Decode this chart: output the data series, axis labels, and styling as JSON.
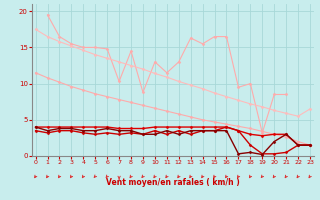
{
  "xlabel": "Vent moyen/en rafales ( km/h )",
  "background_color": "#c8eded",
  "grid_color": "#a8d8d8",
  "x_ticks": [
    0,
    1,
    2,
    3,
    4,
    5,
    6,
    7,
    8,
    9,
    10,
    11,
    12,
    13,
    14,
    15,
    16,
    17,
    18,
    19,
    20,
    21,
    22,
    23
  ],
  "y_ticks": [
    0,
    5,
    10,
    15,
    20
  ],
  "xlim": [
    0,
    23
  ],
  "ylim": [
    0,
    21
  ],
  "series": [
    {
      "x": [
        0,
        1,
        2,
        3,
        4,
        5,
        6,
        7,
        8,
        9,
        10,
        11,
        12,
        13,
        14,
        15,
        16,
        17,
        18,
        19,
        20,
        21,
        22,
        23
      ],
      "y": [
        11.5,
        10.8,
        10.2,
        9.6,
        9.1,
        8.6,
        8.2,
        7.8,
        7.4,
        7.0,
        6.6,
        6.2,
        5.8,
        5.4,
        5.0,
        4.7,
        4.4,
        4.1,
        3.8,
        3.4,
        3.0,
        2.6,
        2.0,
        1.5
      ],
      "color": "#ffaaaa",
      "marker": "D",
      "markersize": 1.5,
      "linewidth": 0.8
    },
    {
      "x": [
        1,
        2,
        3,
        4,
        5,
        6,
        7,
        8,
        9,
        10,
        11,
        12,
        13,
        14,
        15,
        16,
        17,
        18,
        19,
        20,
        21
      ],
      "y": [
        19.5,
        16.5,
        15.5,
        15.0,
        15.0,
        14.8,
        10.3,
        14.5,
        8.8,
        13.0,
        11.5,
        13.0,
        16.3,
        15.5,
        16.5,
        16.5,
        9.5,
        10.0,
        3.2,
        8.5,
        8.5
      ],
      "color": "#ffaaaa",
      "marker": "D",
      "markersize": 1.5,
      "linewidth": 0.8
    },
    {
      "x": [
        0,
        1,
        2,
        3,
        4,
        5,
        6,
        7,
        8,
        9,
        10,
        11,
        12,
        13,
        14,
        15,
        16,
        17,
        18,
        19,
        20,
        21,
        22,
        23
      ],
      "y": [
        17.5,
        16.5,
        15.8,
        15.2,
        14.6,
        14.0,
        13.5,
        13.0,
        12.5,
        12.0,
        11.4,
        10.9,
        10.3,
        9.8,
        9.3,
        8.7,
        8.2,
        7.7,
        7.2,
        6.8,
        6.3,
        5.9,
        5.5,
        6.5
      ],
      "color": "#ffbbbb",
      "marker": "D",
      "markersize": 1.5,
      "linewidth": 0.8
    },
    {
      "x": [
        0,
        1,
        2,
        3,
        4,
        5,
        6,
        7,
        8,
        9,
        10,
        11,
        12,
        13,
        14,
        15,
        16,
        17,
        18,
        19,
        20,
        21,
        22,
        23
      ],
      "y": [
        4.0,
        4.0,
        4.0,
        4.0,
        4.0,
        4.0,
        4.0,
        3.8,
        3.8,
        3.8,
        4.0,
        4.0,
        4.0,
        4.0,
        4.0,
        4.0,
        4.0,
        3.5,
        3.0,
        2.8,
        3.0,
        3.0,
        1.5,
        1.5
      ],
      "color": "#dd0000",
      "marker": "D",
      "markersize": 1.5,
      "linewidth": 1.0
    },
    {
      "x": [
        0,
        1,
        2,
        3,
        4,
        5,
        6,
        7,
        8,
        9,
        10,
        11,
        12,
        13,
        14,
        15,
        16,
        17,
        18,
        19,
        20,
        21,
        22,
        23
      ],
      "y": [
        3.5,
        3.2,
        3.5,
        3.5,
        3.2,
        3.0,
        3.2,
        3.0,
        3.2,
        3.0,
        3.5,
        3.0,
        3.5,
        3.0,
        3.5,
        3.5,
        4.0,
        3.5,
        1.5,
        0.3,
        0.3,
        0.5,
        1.5,
        1.5
      ],
      "color": "#cc0000",
      "marker": "D",
      "markersize": 1.5,
      "linewidth": 1.0
    },
    {
      "x": [
        0,
        1,
        2,
        3,
        4,
        5,
        6,
        7,
        8,
        9,
        10,
        11,
        12,
        13,
        14,
        15,
        16,
        17,
        18,
        19,
        20,
        21,
        22,
        23
      ],
      "y": [
        4.0,
        3.5,
        3.8,
        3.8,
        3.5,
        3.5,
        3.8,
        3.5,
        3.5,
        3.0,
        3.0,
        3.5,
        3.0,
        3.5,
        3.5,
        3.5,
        3.5,
        0.3,
        0.5,
        0.2,
        2.0,
        3.0,
        1.5,
        1.5
      ],
      "color": "#880000",
      "marker": "D",
      "markersize": 1.5,
      "linewidth": 1.0
    }
  ],
  "arrow_color": "#dd3333",
  "xlabel_color": "#cc0000",
  "tick_color": "#cc0000",
  "spine_color": "#888888"
}
